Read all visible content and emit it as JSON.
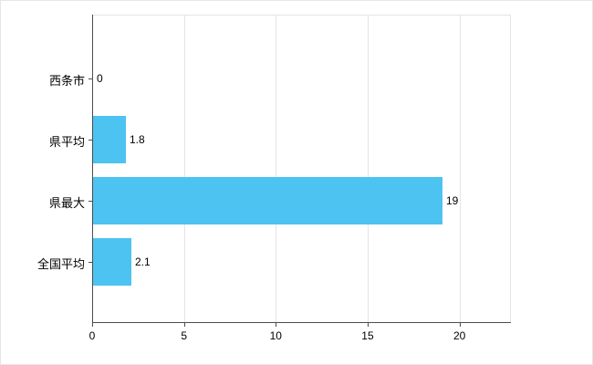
{
  "chart_data": {
    "type": "bar",
    "orientation": "horizontal",
    "title": "",
    "categories": [
      "西条市",
      "県平均",
      "県最大",
      "全国平均"
    ],
    "values": [
      0,
      1.8,
      19,
      2.1
    ],
    "value_labels": [
      "0",
      "1.8",
      "19",
      "2.1"
    ],
    "x_ticks": [
      0,
      5,
      10,
      15,
      20
    ],
    "x_tick_labels": [
      "0",
      "5",
      "10",
      "15",
      "20"
    ],
    "xlim": [
      0,
      22.75
    ],
    "grid": true,
    "legend": "none",
    "bar_color": "#4cc3f0",
    "axis_color": "#4d4d4d",
    "grid_color": "#e4e4e4",
    "background_color": "#ffffff"
  }
}
